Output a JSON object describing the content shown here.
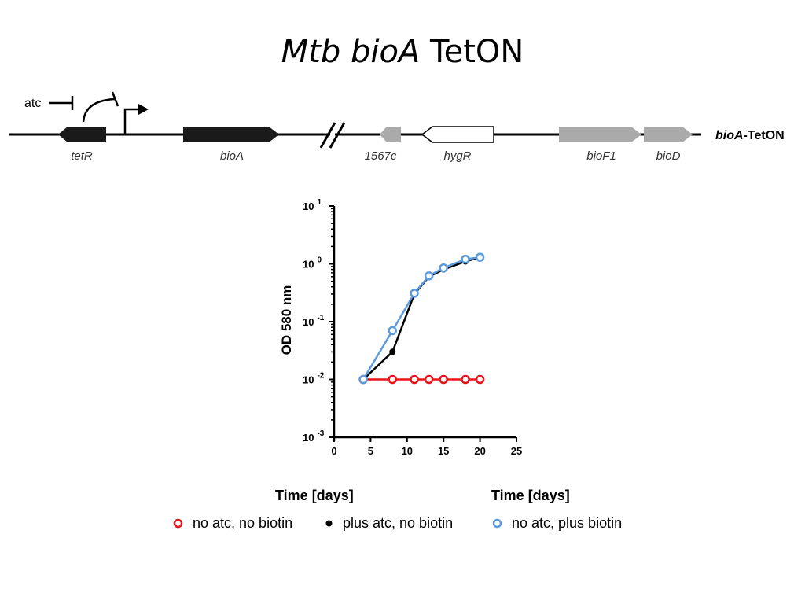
{
  "slide": {
    "title_italic": "Mtb bioA",
    "title_rest": "TetON"
  },
  "gene_map": {
    "atc_label": "atc",
    "construct_italic": "bioA",
    "construct_rest": "-TetON",
    "genes": [
      "tetR",
      "bioA",
      "1567c",
      "hygR",
      "bioF1",
      "bioD"
    ],
    "colors": {
      "dark": "#1a1a1a",
      "grey": "#aaaaaa",
      "white": "#ffffff"
    }
  },
  "chart_data": {
    "type": "line",
    "xlabel": "Time [days]",
    "xlabel_repeat": "Time [days]",
    "ylabel": "OD 580 nm",
    "x_ticks": [
      "0",
      "5",
      "10",
      "15",
      "20",
      "25"
    ],
    "xlim": [
      0,
      25
    ],
    "y_scale": "log",
    "ylim": [
      0.001,
      10
    ],
    "y_ticks": [
      {
        "base": "10",
        "exp": "1"
      },
      {
        "base": "10",
        "exp": "0"
      },
      {
        "base": "10",
        "exp": "-1"
      },
      {
        "base": "10",
        "exp": "-2"
      },
      {
        "base": "10",
        "exp": "-3"
      }
    ],
    "series": [
      {
        "name": "no atc, no biotin",
        "color": "#e8141b",
        "marker": "open-circle",
        "x": [
          4,
          8,
          11,
          13,
          15,
          18,
          20
        ],
        "y": [
          0.01,
          0.01,
          0.01,
          0.01,
          0.01,
          0.01,
          0.01
        ]
      },
      {
        "name": "plus atc, no biotin",
        "color": "#000000",
        "marker": "filled-circle",
        "x": [
          4,
          8,
          11,
          13,
          15,
          18,
          20
        ],
        "y": [
          0.01,
          0.03,
          0.3,
          0.6,
          0.8,
          1.1,
          1.3
        ]
      },
      {
        "name": "no atc, plus biotin",
        "color": "#5b9bde",
        "marker": "open-circle",
        "x": [
          4,
          8,
          11,
          13,
          15,
          18,
          20
        ],
        "y": [
          0.01,
          0.07,
          0.31,
          0.62,
          0.85,
          1.2,
          1.3
        ]
      }
    ]
  }
}
